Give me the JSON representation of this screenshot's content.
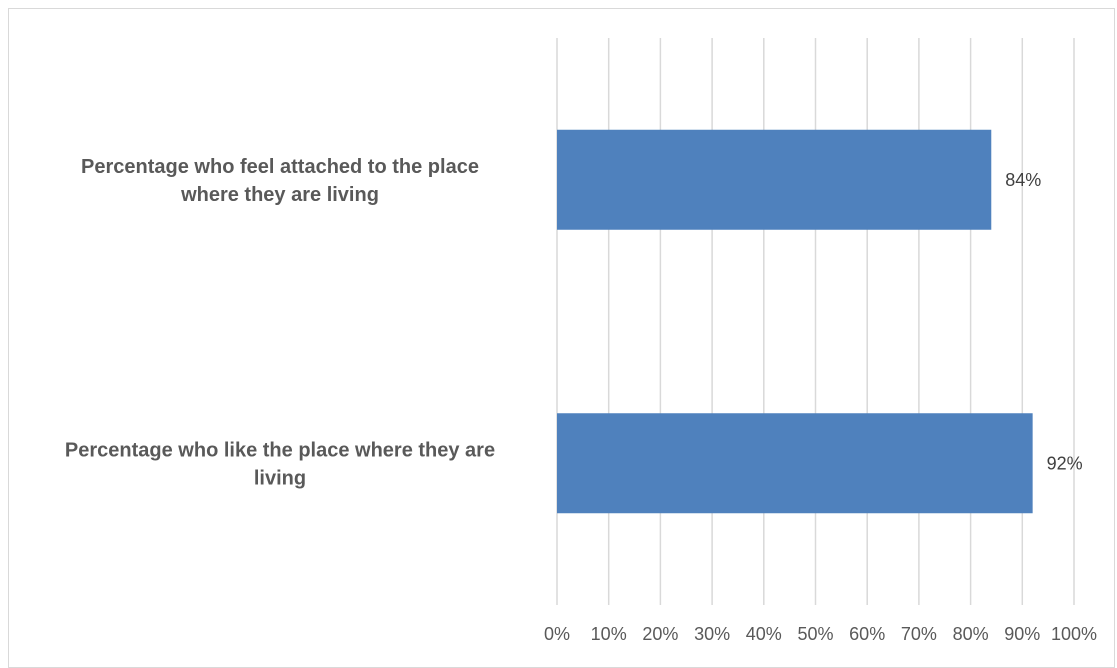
{
  "chart_data": {
    "type": "bar",
    "orientation": "horizontal",
    "categories": [
      "Percentage who feel attached to the place where they are living",
      "Percentage who like the place where they are living"
    ],
    "category_label_lines": [
      [
        "Percentage who feel attached to the place",
        "where they are living"
      ],
      [
        "Percentage who like the place where they are",
        "living"
      ]
    ],
    "values": [
      84,
      92
    ],
    "data_labels": [
      "84%",
      "92%"
    ],
    "xlim": [
      0,
      100
    ],
    "x_ticks": [
      0,
      10,
      20,
      30,
      40,
      50,
      60,
      70,
      80,
      90,
      100
    ],
    "x_tick_labels": [
      "0%",
      "10%",
      "20%",
      "30%",
      "40%",
      "50%",
      "60%",
      "70%",
      "80%",
      "90%",
      "100%"
    ],
    "grid": true,
    "legend": "none",
    "title": "",
    "xlabel": "",
    "ylabel": ""
  },
  "colors": {
    "bar": "#4f81bd",
    "grid": "#d9d9d9",
    "text": "#595959"
  }
}
